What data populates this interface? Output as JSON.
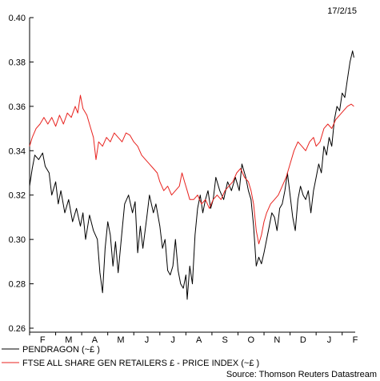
{
  "date_label": "17/2/15",
  "source": "Source: Thomson Reuters Datastream",
  "colors": {
    "pendragon": "#000000",
    "ftse": "#e8231f",
    "axis": "#000000"
  },
  "chart_data": {
    "type": "line",
    "title": "",
    "xlabel": "",
    "ylabel": "",
    "ylim": [
      0.26,
      0.4
    ],
    "yticks": [
      "0.26",
      "0.28",
      "0.30",
      "0.32",
      "0.34",
      "0.36",
      "0.38",
      "0.40"
    ],
    "x_month_labels": [
      "F",
      "M",
      "A",
      "M",
      "J",
      "J",
      "A",
      "S",
      "O",
      "N",
      "D",
      "J",
      "F"
    ],
    "grid": false,
    "legend": "bottom",
    "x_position": "month index (0 = start of Feb 2014, 12 = start of Feb 2015)",
    "series": [
      {
        "name": "PENDRAGON (~£ )",
        "color": "#000000",
        "points": [
          [
            0.0,
            0.324
          ],
          [
            0.1,
            0.332
          ],
          [
            0.2,
            0.338
          ],
          [
            0.35,
            0.336
          ],
          [
            0.5,
            0.339
          ],
          [
            0.6,
            0.333
          ],
          [
            0.75,
            0.33
          ],
          [
            0.85,
            0.32
          ],
          [
            1.0,
            0.326
          ],
          [
            1.1,
            0.316
          ],
          [
            1.2,
            0.322
          ],
          [
            1.35,
            0.312
          ],
          [
            1.5,
            0.318
          ],
          [
            1.65,
            0.308
          ],
          [
            1.8,
            0.314
          ],
          [
            1.95,
            0.306
          ],
          [
            2.05,
            0.312
          ],
          [
            2.15,
            0.3
          ],
          [
            2.3,
            0.311
          ],
          [
            2.45,
            0.304
          ],
          [
            2.6,
            0.3
          ],
          [
            2.7,
            0.285
          ],
          [
            2.8,
            0.276
          ],
          [
            2.9,
            0.296
          ],
          [
            3.0,
            0.308
          ],
          [
            3.1,
            0.302
          ],
          [
            3.2,
            0.288
          ],
          [
            3.3,
            0.299
          ],
          [
            3.4,
            0.285
          ],
          [
            3.55,
            0.304
          ],
          [
            3.65,
            0.316
          ],
          [
            3.8,
            0.32
          ],
          [
            3.95,
            0.312
          ],
          [
            4.05,
            0.317
          ],
          [
            4.15,
            0.294
          ],
          [
            4.25,
            0.306
          ],
          [
            4.35,
            0.296
          ],
          [
            4.5,
            0.31
          ],
          [
            4.6,
            0.32
          ],
          [
            4.75,
            0.312
          ],
          [
            4.85,
            0.316
          ],
          [
            5.0,
            0.306
          ],
          [
            5.1,
            0.296
          ],
          [
            5.2,
            0.3
          ],
          [
            5.3,
            0.286
          ],
          [
            5.4,
            0.284
          ],
          [
            5.5,
            0.288
          ],
          [
            5.6,
            0.3
          ],
          [
            5.7,
            0.286
          ],
          [
            5.8,
            0.28
          ],
          [
            5.9,
            0.278
          ],
          [
            6.0,
            0.284
          ],
          [
            6.05,
            0.273
          ],
          [
            6.15,
            0.288
          ],
          [
            6.25,
            0.28
          ],
          [
            6.35,
            0.302
          ],
          [
            6.45,
            0.314
          ],
          [
            6.55,
            0.32
          ],
          [
            6.65,
            0.312
          ],
          [
            6.75,
            0.318
          ],
          [
            6.85,
            0.322
          ],
          [
            6.95,
            0.314
          ],
          [
            7.05,
            0.318
          ],
          [
            7.15,
            0.328
          ],
          [
            7.3,
            0.322
          ],
          [
            7.45,
            0.318
          ],
          [
            7.6,
            0.326
          ],
          [
            7.75,
            0.322
          ],
          [
            7.9,
            0.328
          ],
          [
            8.05,
            0.322
          ],
          [
            8.15,
            0.334
          ],
          [
            8.3,
            0.328
          ],
          [
            8.4,
            0.322
          ],
          [
            8.5,
            0.318
          ],
          [
            8.6,
            0.306
          ],
          [
            8.7,
            0.288
          ],
          [
            8.8,
            0.292
          ],
          [
            8.9,
            0.289
          ],
          [
            9.0,
            0.294
          ],
          [
            9.1,
            0.3
          ],
          [
            9.2,
            0.306
          ],
          [
            9.3,
            0.312
          ],
          [
            9.4,
            0.31
          ],
          [
            9.5,
            0.304
          ],
          [
            9.6,
            0.314
          ],
          [
            9.7,
            0.316
          ],
          [
            9.8,
            0.322
          ],
          [
            9.9,
            0.33
          ],
          [
            10.0,
            0.32
          ],
          [
            10.1,
            0.31
          ],
          [
            10.2,
            0.304
          ],
          [
            10.3,
            0.318
          ],
          [
            10.4,
            0.324
          ],
          [
            10.5,
            0.32
          ],
          [
            10.6,
            0.318
          ],
          [
            10.7,
            0.322
          ],
          [
            10.8,
            0.312
          ],
          [
            10.9,
            0.322
          ],
          [
            11.0,
            0.328
          ],
          [
            11.1,
            0.334
          ],
          [
            11.2,
            0.33
          ],
          [
            11.3,
            0.342
          ],
          [
            11.4,
            0.338
          ],
          [
            11.5,
            0.346
          ],
          [
            11.6,
            0.342
          ],
          [
            11.7,
            0.354
          ],
          [
            11.8,
            0.36
          ],
          [
            11.9,
            0.358
          ],
          [
            12.0,
            0.366
          ],
          [
            12.1,
            0.364
          ],
          [
            12.2,
            0.372
          ],
          [
            12.3,
            0.38
          ],
          [
            12.4,
            0.385
          ],
          [
            12.45,
            0.382
          ]
        ]
      },
      {
        "name": "FTSE ALL SHARE GEN RETAILERS £ - PRICE INDEX (~£ )",
        "color": "#e8231f",
        "points": [
          [
            0.0,
            0.342
          ],
          [
            0.1,
            0.346
          ],
          [
            0.25,
            0.35
          ],
          [
            0.4,
            0.352
          ],
          [
            0.55,
            0.355
          ],
          [
            0.7,
            0.352
          ],
          [
            0.85,
            0.355
          ],
          [
            1.0,
            0.351
          ],
          [
            1.15,
            0.356
          ],
          [
            1.3,
            0.352
          ],
          [
            1.45,
            0.357
          ],
          [
            1.6,
            0.355
          ],
          [
            1.75,
            0.36
          ],
          [
            1.85,
            0.357
          ],
          [
            1.95,
            0.365
          ],
          [
            2.05,
            0.359
          ],
          [
            2.2,
            0.356
          ],
          [
            2.35,
            0.35
          ],
          [
            2.45,
            0.346
          ],
          [
            2.55,
            0.336
          ],
          [
            2.65,
            0.344
          ],
          [
            2.8,
            0.342
          ],
          [
            2.95,
            0.346
          ],
          [
            3.1,
            0.344
          ],
          [
            3.25,
            0.348
          ],
          [
            3.4,
            0.346
          ],
          [
            3.55,
            0.344
          ],
          [
            3.7,
            0.348
          ],
          [
            3.85,
            0.347
          ],
          [
            4.0,
            0.344
          ],
          [
            4.15,
            0.342
          ],
          [
            4.3,
            0.338
          ],
          [
            4.45,
            0.336
          ],
          [
            4.6,
            0.334
          ],
          [
            4.75,
            0.332
          ],
          [
            4.9,
            0.33
          ],
          [
            5.0,
            0.326
          ],
          [
            5.15,
            0.322
          ],
          [
            5.3,
            0.324
          ],
          [
            5.45,
            0.32
          ],
          [
            5.6,
            0.322
          ],
          [
            5.75,
            0.324
          ],
          [
            5.85,
            0.33
          ],
          [
            5.95,
            0.326
          ],
          [
            6.05,
            0.322
          ],
          [
            6.15,
            0.318
          ],
          [
            6.3,
            0.318
          ],
          [
            6.45,
            0.32
          ],
          [
            6.6,
            0.316
          ],
          [
            6.75,
            0.318
          ],
          [
            6.9,
            0.314
          ],
          [
            7.05,
            0.318
          ],
          [
            7.2,
            0.32
          ],
          [
            7.35,
            0.318
          ],
          [
            7.5,
            0.322
          ],
          [
            7.65,
            0.324
          ],
          [
            7.8,
            0.326
          ],
          [
            7.95,
            0.33
          ],
          [
            8.1,
            0.332
          ],
          [
            8.25,
            0.328
          ],
          [
            8.4,
            0.326
          ],
          [
            8.5,
            0.322
          ],
          [
            8.6,
            0.316
          ],
          [
            8.7,
            0.304
          ],
          [
            8.8,
            0.298
          ],
          [
            8.9,
            0.302
          ],
          [
            9.0,
            0.308
          ],
          [
            9.1,
            0.312
          ],
          [
            9.25,
            0.316
          ],
          [
            9.4,
            0.318
          ],
          [
            9.55,
            0.32
          ],
          [
            9.7,
            0.324
          ],
          [
            9.85,
            0.328
          ],
          [
            10.0,
            0.334
          ],
          [
            10.15,
            0.34
          ],
          [
            10.3,
            0.344
          ],
          [
            10.45,
            0.342
          ],
          [
            10.6,
            0.34
          ],
          [
            10.75,
            0.344
          ],
          [
            10.9,
            0.346
          ],
          [
            11.0,
            0.342
          ],
          [
            11.15,
            0.344
          ],
          [
            11.3,
            0.35
          ],
          [
            11.45,
            0.352
          ],
          [
            11.6,
            0.35
          ],
          [
            11.75,
            0.354
          ],
          [
            11.9,
            0.356
          ],
          [
            12.05,
            0.358
          ],
          [
            12.2,
            0.36
          ],
          [
            12.35,
            0.361
          ],
          [
            12.45,
            0.36
          ]
        ]
      }
    ]
  }
}
